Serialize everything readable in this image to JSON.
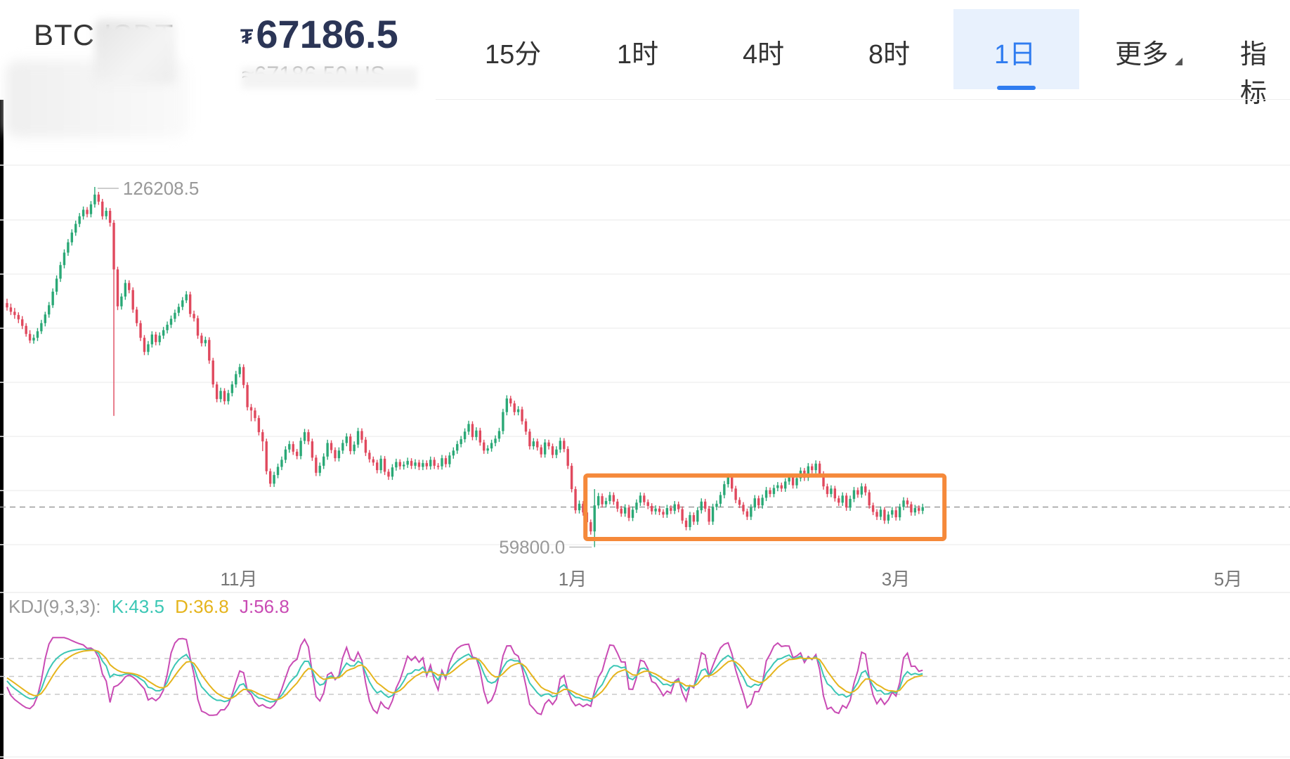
{
  "header": {
    "pair": "BTC   ISDT",
    "price_symbol": "₮",
    "price": "67186.5",
    "sub_price": "≈67186.50 US",
    "tabs": [
      {
        "label": "15分",
        "selected": false
      },
      {
        "label": "1时",
        "selected": false
      },
      {
        "label": "4时",
        "selected": false
      },
      {
        "label": "8时",
        "selected": false
      },
      {
        "label": "1日",
        "selected": true
      },
      {
        "label": "更多",
        "selected": false
      },
      {
        "label": "指标",
        "selected": false
      }
    ]
  },
  "chart_data": {
    "type": "candlestick",
    "x_tick_labels": [
      "11月",
      "1月",
      "3月",
      "5月"
    ],
    "high_label": "126208.5",
    "low_label": "59800.0",
    "current_price": 67186.5,
    "y_range": [
      55000,
      130000
    ],
    "colors": {
      "up": "#2aa876",
      "down": "#e0495e",
      "highlight_box": "#f5893a"
    },
    "candles": [
      [
        104800,
        104000,
        105600,
        103400
      ],
      [
        104000,
        103200,
        104700,
        102600
      ],
      [
        103200,
        102600,
        103900,
        101900
      ],
      [
        102600,
        101800,
        103100,
        101100
      ],
      [
        101800,
        100600,
        102400,
        100000
      ],
      [
        100600,
        99100,
        101100,
        98600
      ],
      [
        99100,
        97900,
        99800,
        97400
      ],
      [
        97900,
        98400,
        99000,
        97300
      ],
      [
        98400,
        99600,
        100200,
        97800
      ],
      [
        99600,
        101100,
        101700,
        99100
      ],
      [
        101100,
        102700,
        103200,
        100500
      ],
      [
        102700,
        104400,
        105000,
        102100
      ],
      [
        104400,
        106900,
        107500,
        103900
      ],
      [
        106900,
        109300,
        109900,
        106300
      ],
      [
        109300,
        111800,
        112400,
        108700
      ],
      [
        111800,
        114100,
        114700,
        111200
      ],
      [
        114100,
        116000,
        116600,
        113500
      ],
      [
        116000,
        117800,
        118400,
        115400
      ],
      [
        117800,
        119400,
        120000,
        117200
      ],
      [
        119400,
        120800,
        121400,
        118800
      ],
      [
        120800,
        122000,
        122600,
        120200
      ],
      [
        122000,
        121200,
        122500,
        120600
      ],
      [
        121200,
        123000,
        123600,
        120600
      ],
      [
        123000,
        124800,
        126208.5,
        122400
      ],
      [
        124800,
        123500,
        125300,
        122900
      ],
      [
        123500,
        120800,
        124000,
        120200
      ],
      [
        120800,
        121800,
        122400,
        120200
      ],
      [
        121800,
        119600,
        122300,
        118900
      ],
      [
        119600,
        111000,
        120100,
        84000
      ],
      [
        111000,
        104200,
        111500,
        103500
      ],
      [
        104200,
        106000,
        106600,
        103600
      ],
      [
        106000,
        108500,
        109100,
        105400
      ],
      [
        108500,
        107200,
        109000,
        106600
      ],
      [
        107200,
        103600,
        107700,
        103000
      ],
      [
        103600,
        101100,
        104100,
        100500
      ],
      [
        101100,
        98400,
        101600,
        97800
      ],
      [
        98400,
        95800,
        98900,
        95200
      ],
      [
        95800,
        97200,
        97800,
        95200
      ],
      [
        97200,
        99000,
        99600,
        96600
      ],
      [
        99000,
        97600,
        99500,
        97000
      ],
      [
        97600,
        98800,
        99400,
        97000
      ],
      [
        98800,
        99800,
        100400,
        98200
      ],
      [
        99800,
        100800,
        101400,
        99200
      ],
      [
        100800,
        101900,
        102500,
        100200
      ],
      [
        101900,
        103000,
        103600,
        101300
      ],
      [
        103000,
        104100,
        104700,
        102400
      ],
      [
        104100,
        105300,
        105900,
        103500
      ],
      [
        105300,
        106400,
        107000,
        104800
      ],
      [
        106400,
        102800,
        106900,
        102200
      ],
      [
        102800,
        102000,
        103400,
        101400
      ],
      [
        102000,
        98800,
        102500,
        98200
      ],
      [
        98800,
        97400,
        99300,
        96800
      ],
      [
        97400,
        98000,
        98600,
        96800
      ],
      [
        98000,
        94200,
        98500,
        93600
      ],
      [
        94200,
        89800,
        94700,
        89200
      ],
      [
        89800,
        87100,
        90300,
        86500
      ],
      [
        87100,
        88600,
        89200,
        86500
      ],
      [
        88600,
        86700,
        89100,
        86100
      ],
      [
        86700,
        88200,
        88800,
        86100
      ],
      [
        88200,
        89800,
        90400,
        87600
      ],
      [
        89800,
        91700,
        92300,
        89200
      ],
      [
        91700,
        93000,
        93600,
        91100
      ],
      [
        93000,
        89700,
        93500,
        89100
      ],
      [
        89700,
        85600,
        90200,
        85000
      ],
      [
        85600,
        85000,
        86200,
        83000
      ],
      [
        85000,
        83600,
        85500,
        83000
      ],
      [
        83600,
        81000,
        84100,
        80400
      ],
      [
        81000,
        79300,
        81500,
        77500
      ],
      [
        79300,
        73800,
        79800,
        73200
      ],
      [
        73800,
        71500,
        74300,
        70900
      ],
      [
        71500,
        73100,
        73700,
        70900
      ],
      [
        73100,
        74600,
        75200,
        72500
      ],
      [
        74600,
        75900,
        76500,
        74000
      ],
      [
        75900,
        77800,
        78400,
        75300
      ],
      [
        77800,
        78800,
        79400,
        77200
      ],
      [
        78800,
        77400,
        79300,
        76800
      ],
      [
        77400,
        76600,
        77900,
        76000
      ],
      [
        76600,
        79400,
        80000,
        76000
      ],
      [
        79400,
        81000,
        81600,
        78800
      ],
      [
        81000,
        79300,
        81500,
        78700
      ],
      [
        79300,
        76300,
        79800,
        75700
      ],
      [
        76300,
        73500,
        76800,
        72900
      ],
      [
        73500,
        74800,
        75400,
        72900
      ],
      [
        74800,
        76500,
        77100,
        74200
      ],
      [
        76500,
        79000,
        79600,
        75900
      ],
      [
        79000,
        77700,
        79500,
        77100
      ],
      [
        77700,
        76200,
        78200,
        75600
      ],
      [
        76200,
        77600,
        78200,
        75600
      ],
      [
        77600,
        79000,
        79600,
        77000
      ],
      [
        79000,
        80200,
        80800,
        78400
      ],
      [
        80200,
        77500,
        80700,
        76900
      ],
      [
        77500,
        78700,
        79300,
        76900
      ],
      [
        78700,
        81200,
        81800,
        78100
      ],
      [
        81200,
        79600,
        81700,
        79000
      ],
      [
        79600,
        77200,
        80100,
        76600
      ],
      [
        77200,
        76000,
        77700,
        75400
      ],
      [
        76000,
        75400,
        76500,
        74800
      ],
      [
        75400,
        74000,
        75900,
        73400
      ],
      [
        74000,
        76100,
        76700,
        73400
      ],
      [
        76100,
        73700,
        76600,
        73100
      ],
      [
        73700,
        72800,
        74200,
        72200
      ],
      [
        72800,
        74500,
        75100,
        72200
      ],
      [
        74500,
        75500,
        76100,
        73900
      ],
      [
        75500,
        74700,
        76000,
        74100
      ],
      [
        74700,
        75000,
        75600,
        74100
      ],
      [
        75000,
        75700,
        76300,
        74400
      ],
      [
        75700,
        74800,
        76200,
        74200
      ],
      [
        74800,
        75400,
        76000,
        74200
      ],
      [
        75400,
        74600,
        75900,
        74000
      ],
      [
        74600,
        75300,
        75900,
        74000
      ],
      [
        75300,
        74700,
        75800,
        74100
      ],
      [
        74700,
        75900,
        76500,
        74100
      ],
      [
        75900,
        74800,
        76400,
        74200
      ],
      [
        74800,
        74700,
        75300,
        74100
      ],
      [
        74700,
        76200,
        76800,
        74100
      ],
      [
        76200,
        75100,
        76700,
        74500
      ],
      [
        75100,
        76700,
        77300,
        74500
      ],
      [
        76700,
        77600,
        78200,
        76100
      ],
      [
        77600,
        78800,
        79400,
        77000
      ],
      [
        78800,
        79700,
        80300,
        78200
      ],
      [
        79700,
        81100,
        81700,
        79100
      ],
      [
        81100,
        82500,
        83100,
        80500
      ],
      [
        82500,
        80100,
        83000,
        79500
      ],
      [
        80100,
        81300,
        81900,
        79500
      ],
      [
        81300,
        79100,
        81800,
        78500
      ],
      [
        79100,
        77600,
        79600,
        77000
      ],
      [
        77600,
        78000,
        78600,
        77000
      ],
      [
        78000,
        79000,
        79600,
        77400
      ],
      [
        79000,
        79800,
        80400,
        78400
      ],
      [
        79800,
        81200,
        81800,
        79200
      ],
      [
        81200,
        84700,
        85300,
        80600
      ],
      [
        84700,
        87200,
        87800,
        84100
      ],
      [
        87200,
        86300,
        87700,
        85700
      ],
      [
        86300,
        84700,
        86800,
        84100
      ],
      [
        84700,
        85200,
        85800,
        84100
      ],
      [
        85200,
        83000,
        85700,
        82400
      ],
      [
        83000,
        81100,
        83500,
        80500
      ],
      [
        81100,
        78400,
        81600,
        77800
      ],
      [
        78400,
        79300,
        79900,
        77800
      ],
      [
        79300,
        78200,
        79800,
        77600
      ],
      [
        78200,
        76900,
        78700,
        76300
      ],
      [
        76900,
        79100,
        79700,
        76300
      ],
      [
        79100,
        78400,
        79600,
        77800
      ],
      [
        78400,
        76800,
        78900,
        76200
      ],
      [
        76800,
        77800,
        78400,
        76200
      ],
      [
        77800,
        79400,
        80000,
        77200
      ],
      [
        79400,
        77900,
        79900,
        77300
      ],
      [
        77900,
        74800,
        78400,
        74200
      ],
      [
        74800,
        70500,
        75300,
        69900
      ],
      [
        70500,
        66600,
        71000,
        66000
      ],
      [
        66600,
        67800,
        68400,
        66000
      ],
      [
        67800,
        66200,
        68300,
        65600
      ],
      [
        66200,
        64400,
        66700,
        62500
      ],
      [
        64400,
        62700,
        64900,
        62100
      ],
      [
        62700,
        67500,
        70500,
        59800
      ],
      [
        67500,
        69200,
        69800,
        66900
      ],
      [
        69200,
        67700,
        69700,
        67100
      ],
      [
        67700,
        68300,
        68900,
        67100
      ],
      [
        68300,
        69400,
        70000,
        67700
      ],
      [
        69400,
        68200,
        69900,
        67600
      ],
      [
        68200,
        66900,
        68700,
        66300
      ],
      [
        66900,
        66000,
        67400,
        65400
      ],
      [
        66000,
        67100,
        67700,
        65400
      ],
      [
        67100,
        65200,
        67600,
        64600
      ],
      [
        65200,
        66700,
        67300,
        64600
      ],
      [
        66700,
        68000,
        68600,
        66100
      ],
      [
        68000,
        69300,
        69900,
        67400
      ],
      [
        69300,
        68100,
        69800,
        67500
      ],
      [
        68100,
        67400,
        68600,
        66800
      ],
      [
        67400,
        66400,
        67900,
        65800
      ],
      [
        66400,
        66900,
        67500,
        65800
      ],
      [
        66900,
        66300,
        67400,
        65700
      ],
      [
        66300,
        65800,
        66800,
        65200
      ],
      [
        65800,
        67000,
        67600,
        65200
      ],
      [
        67000,
        66500,
        67500,
        65900
      ],
      [
        66500,
        67700,
        68300,
        65900
      ],
      [
        67700,
        66800,
        68200,
        66200
      ],
      [
        66800,
        64700,
        67300,
        64100
      ],
      [
        64700,
        63500,
        65200,
        62900
      ],
      [
        63500,
        65700,
        66300,
        62900
      ],
      [
        65700,
        64500,
        66200,
        63900
      ],
      [
        64500,
        66600,
        67200,
        63900
      ],
      [
        66600,
        68200,
        68800,
        66000
      ],
      [
        68200,
        66900,
        68700,
        66300
      ],
      [
        66900,
        64500,
        67400,
        63900
      ],
      [
        64500,
        67200,
        67800,
        63900
      ],
      [
        67200,
        67800,
        68400,
        66600
      ],
      [
        67800,
        69400,
        70000,
        67200
      ],
      [
        69400,
        71400,
        72000,
        68800
      ],
      [
        71400,
        72800,
        73400,
        70800
      ],
      [
        72800,
        70600,
        73300,
        70000
      ],
      [
        70600,
        68500,
        71100,
        67900
      ],
      [
        68500,
        67600,
        69000,
        67000
      ],
      [
        67600,
        66400,
        68100,
        65800
      ],
      [
        66400,
        65400,
        66900,
        64800
      ],
      [
        65400,
        67100,
        67700,
        64800
      ],
      [
        67100,
        68800,
        69400,
        66500
      ],
      [
        68800,
        67500,
        69300,
        66900
      ],
      [
        67500,
        68900,
        69500,
        66900
      ],
      [
        68900,
        70300,
        70900,
        68300
      ],
      [
        70300,
        69600,
        70800,
        69000
      ],
      [
        69600,
        70700,
        71300,
        69000
      ],
      [
        70700,
        71200,
        71800,
        70100
      ],
      [
        71200,
        70600,
        71700,
        70000
      ],
      [
        70600,
        71900,
        72500,
        70000
      ],
      [
        71900,
        72700,
        73300,
        71300
      ],
      [
        72700,
        71200,
        73200,
        70600
      ],
      [
        71200,
        72500,
        73100,
        70600
      ],
      [
        72500,
        73900,
        74500,
        71900
      ],
      [
        73900,
        72600,
        74400,
        72000
      ],
      [
        72600,
        74700,
        75300,
        72000
      ],
      [
        74700,
        74000,
        75200,
        73400
      ],
      [
        74000,
        75200,
        75800,
        73400
      ],
      [
        75200,
        73300,
        75700,
        72700
      ],
      [
        73300,
        71000,
        73800,
        70400
      ],
      [
        71000,
        69600,
        71500,
        69000
      ],
      [
        69600,
        70600,
        71200,
        69000
      ],
      [
        70600,
        68800,
        71100,
        68200
      ],
      [
        68800,
        68000,
        69300,
        67400
      ],
      [
        68000,
        69300,
        69900,
        67400
      ],
      [
        69300,
        67100,
        69800,
        66500
      ],
      [
        67100,
        68700,
        69300,
        66500
      ],
      [
        68700,
        70300,
        70900,
        68100
      ],
      [
        70300,
        69500,
        70800,
        68900
      ],
      [
        69500,
        71000,
        71600,
        68900
      ],
      [
        71000,
        69900,
        71500,
        69300
      ],
      [
        69900,
        67500,
        70400,
        66900
      ],
      [
        67500,
        66300,
        68000,
        65700
      ],
      [
        66300,
        65400,
        66800,
        64800
      ],
      [
        65400,
        66700,
        67300,
        64800
      ],
      [
        66700,
        64700,
        67200,
        64100
      ],
      [
        64700,
        65800,
        66400,
        64100
      ],
      [
        65800,
        66600,
        67200,
        65200
      ],
      [
        66600,
        65300,
        67100,
        64700
      ],
      [
        65300,
        67200,
        67800,
        64700
      ],
      [
        67200,
        68400,
        69000,
        66600
      ],
      [
        68400,
        67700,
        68900,
        67100
      ],
      [
        67700,
        66200,
        68200,
        65600
      ],
      [
        66200,
        67000,
        67600,
        65600
      ],
      [
        67000,
        66500,
        67500,
        65900
      ],
      [
        66500,
        67186.5,
        67800,
        65900
      ]
    ],
    "kdj": {
      "label": "KDJ(9,3,3):",
      "k_label": "K:43.5",
      "d_label": "D:36.8",
      "j_label": "J:56.8",
      "colors": {
        "k": "#3cc7b5",
        "d": "#e5b41c",
        "j": "#c94bb4"
      }
    }
  }
}
